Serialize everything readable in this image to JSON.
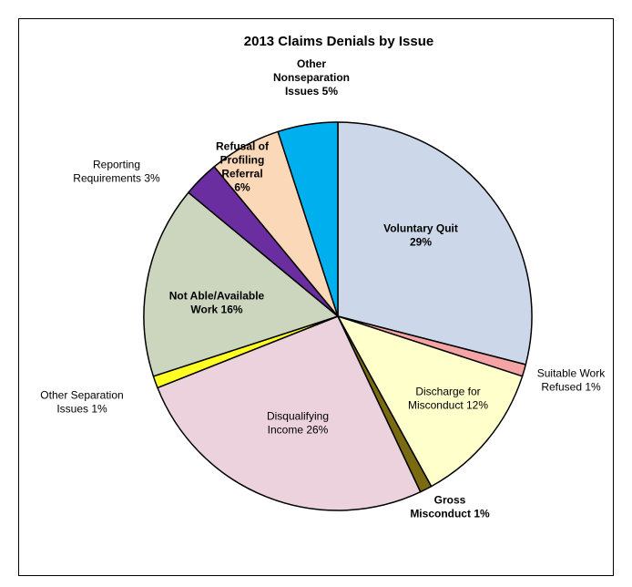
{
  "chart_data": {
    "type": "pie",
    "title": "2013 Claims Denials by Issue",
    "slices": [
      {
        "label_lines": [
          "Voluntary Quit",
          "29%"
        ],
        "value": 29,
        "color": "#ccd8ea"
      },
      {
        "label_lines": [
          "Suitable Work",
          "Refused 1%"
        ],
        "value": 1,
        "color": "#f4a4a4"
      },
      {
        "label_lines": [
          "Discharge for",
          "Misconduct 12%"
        ],
        "value": 12,
        "color": "#ffffcc"
      },
      {
        "label_lines": [
          "Gross",
          "Misconduct 1%"
        ],
        "value": 1,
        "color": "#7a6a12"
      },
      {
        "label_lines": [
          "Disqualifying",
          "Income 26%"
        ],
        "value": 26,
        "color": "#ecd2dc"
      },
      {
        "label_lines": [
          "Other Separation",
          "Issues 1%"
        ],
        "value": 1,
        "color": "#ffff22"
      },
      {
        "label_lines": [
          "Not Able/Available",
          "Work 16%"
        ],
        "value": 16,
        "color": "#ccd6bf"
      },
      {
        "label_lines": [
          "Reporting",
          "Requirements 3%"
        ],
        "value": 3,
        "color": "#6a2ea0"
      },
      {
        "label_lines": [
          "Refusal of",
          "Profiling",
          "Referral",
          "6%"
        ],
        "value": 6,
        "color": "#fbd8b8"
      },
      {
        "label_lines": [
          "Other",
          "Nonseparation",
          "Issues 5%"
        ],
        "value": 5,
        "color": "#00b0ee"
      }
    ]
  }
}
